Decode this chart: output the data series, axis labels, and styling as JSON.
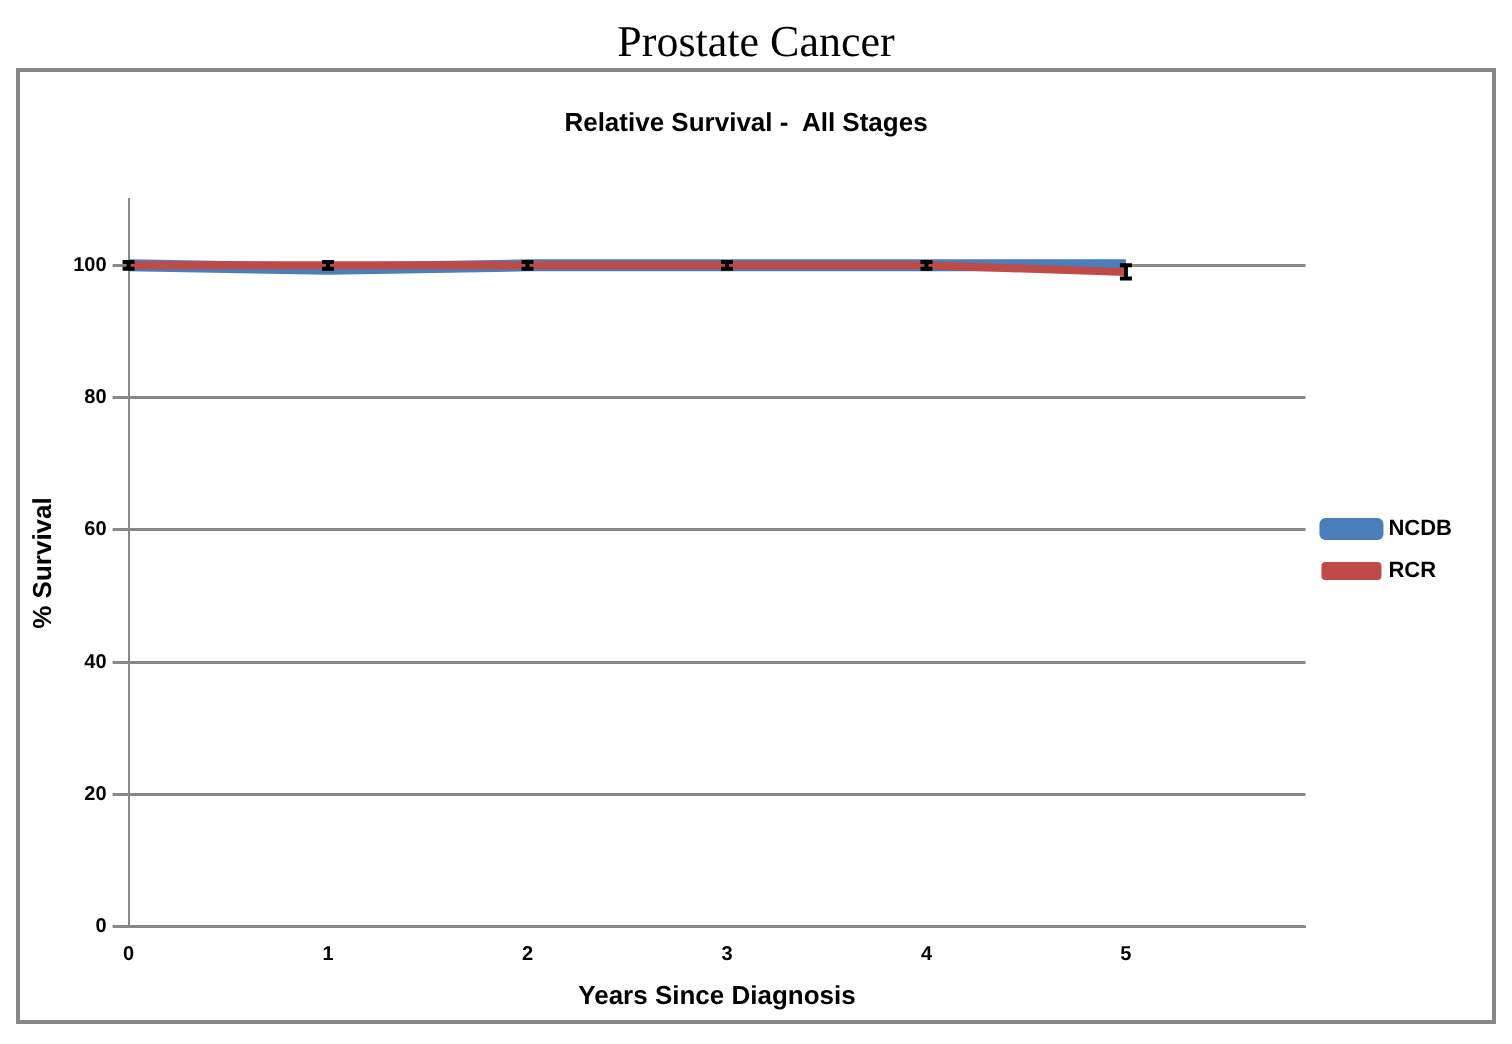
{
  "chart_data": {
    "type": "line",
    "title": "Prostate Cancer",
    "subtitle": "Relative Survival -  All Stages",
    "xlabel": "Years Since Diagnosis",
    "ylabel": "% Survival",
    "x": [
      0,
      1,
      2,
      3,
      4,
      5
    ],
    "series": [
      {
        "name": "NCDB",
        "color": "#4a7ebb",
        "values": [
          100,
          99.5,
          100,
          100,
          100,
          100
        ]
      },
      {
        "name": "RCR",
        "color": "#be4b48",
        "values": [
          100,
          100,
          100,
          100,
          100,
          99
        ],
        "errors": [
          0.5,
          0.5,
          0.5,
          0.5,
          0.5,
          1
        ]
      }
    ],
    "xlim": [
      0,
      5.9
    ],
    "xticks": [
      0,
      1,
      2,
      3,
      4,
      5
    ],
    "ylim": [
      0,
      110
    ],
    "yticks": [
      0,
      20,
      40,
      60,
      80,
      100
    ],
    "grid": "y",
    "legend": "right",
    "marker": "none",
    "line_style": "solid"
  }
}
